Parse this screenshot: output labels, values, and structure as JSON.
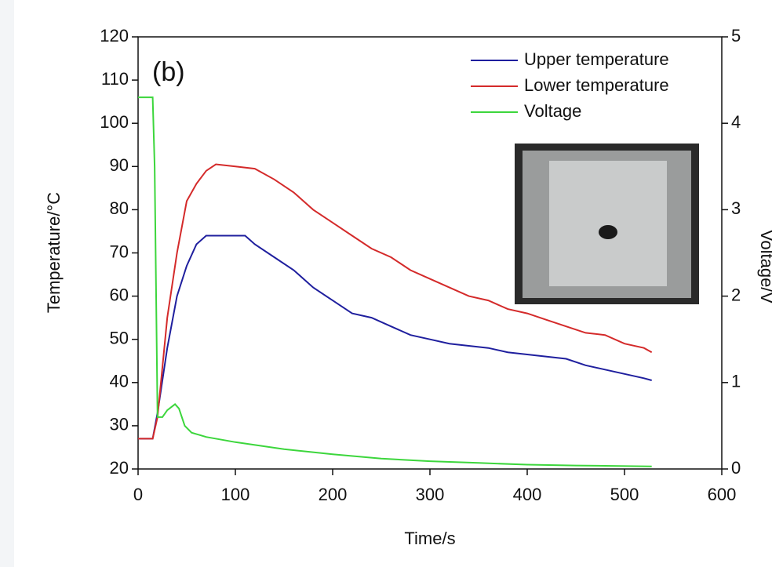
{
  "chart_data": {
    "type": "line",
    "annotation": "(b)",
    "x_label": "Time/s",
    "y_label": "Temperature/°C",
    "y2_label": "Voltage/V",
    "xlim": [
      0,
      600
    ],
    "xticks": [
      0,
      100,
      200,
      300,
      400,
      500,
      600
    ],
    "ylim": [
      20,
      120
    ],
    "yticks": [
      20,
      30,
      40,
      50,
      60,
      70,
      80,
      90,
      100,
      110,
      120
    ],
    "y2lim": [
      0,
      5
    ],
    "y2ticks": [
      0,
      1,
      2,
      3,
      4,
      5
    ],
    "legend": "upper right",
    "series": [
      {
        "name": "Upper temperature",
        "color": "#1f1f9e",
        "x": [
          0,
          15,
          20,
          30,
          40,
          50,
          60,
          70,
          80,
          100,
          110,
          120,
          140,
          160,
          180,
          200,
          220,
          240,
          260,
          280,
          300,
          320,
          340,
          360,
          380,
          400,
          420,
          440,
          460,
          480,
          500,
          520,
          528
        ],
        "values": [
          27,
          27,
          33,
          48,
          60,
          67,
          72,
          74,
          74,
          74,
          74,
          72,
          69,
          66,
          62,
          59,
          56,
          55,
          53,
          51,
          50,
          49,
          48.5,
          48,
          47,
          46.5,
          46,
          45.5,
          44,
          43,
          42,
          41,
          40.5
        ]
      },
      {
        "name": "Lower temperature",
        "color": "#d42a2a",
        "x": [
          0,
          15,
          20,
          30,
          40,
          50,
          60,
          70,
          80,
          100,
          120,
          140,
          160,
          180,
          200,
          220,
          240,
          260,
          280,
          300,
          320,
          340,
          360,
          380,
          400,
          420,
          440,
          460,
          480,
          500,
          520,
          528
        ],
        "values": [
          27,
          27,
          32,
          55,
          70,
          82,
          86,
          89,
          90.5,
          90,
          89.5,
          87,
          84,
          80,
          77,
          74,
          71,
          69,
          66,
          64,
          62,
          60,
          59,
          57,
          56,
          54.5,
          53,
          51.5,
          51,
          49,
          48,
          47
        ]
      },
      {
        "name": "Voltage",
        "color": "#3cd63c",
        "axis": "y2",
        "x": [
          0,
          15,
          17,
          20,
          25,
          30,
          38,
          42,
          48,
          55,
          70,
          100,
          150,
          200,
          250,
          300,
          350,
          400,
          450,
          528
        ],
        "values": [
          4.3,
          4.3,
          3.5,
          0.6,
          0.6,
          0.68,
          0.75,
          0.7,
          0.5,
          0.42,
          0.37,
          0.31,
          0.23,
          0.17,
          0.12,
          0.09,
          0.07,
          0.05,
          0.04,
          0.03
        ]
      }
    ]
  }
}
